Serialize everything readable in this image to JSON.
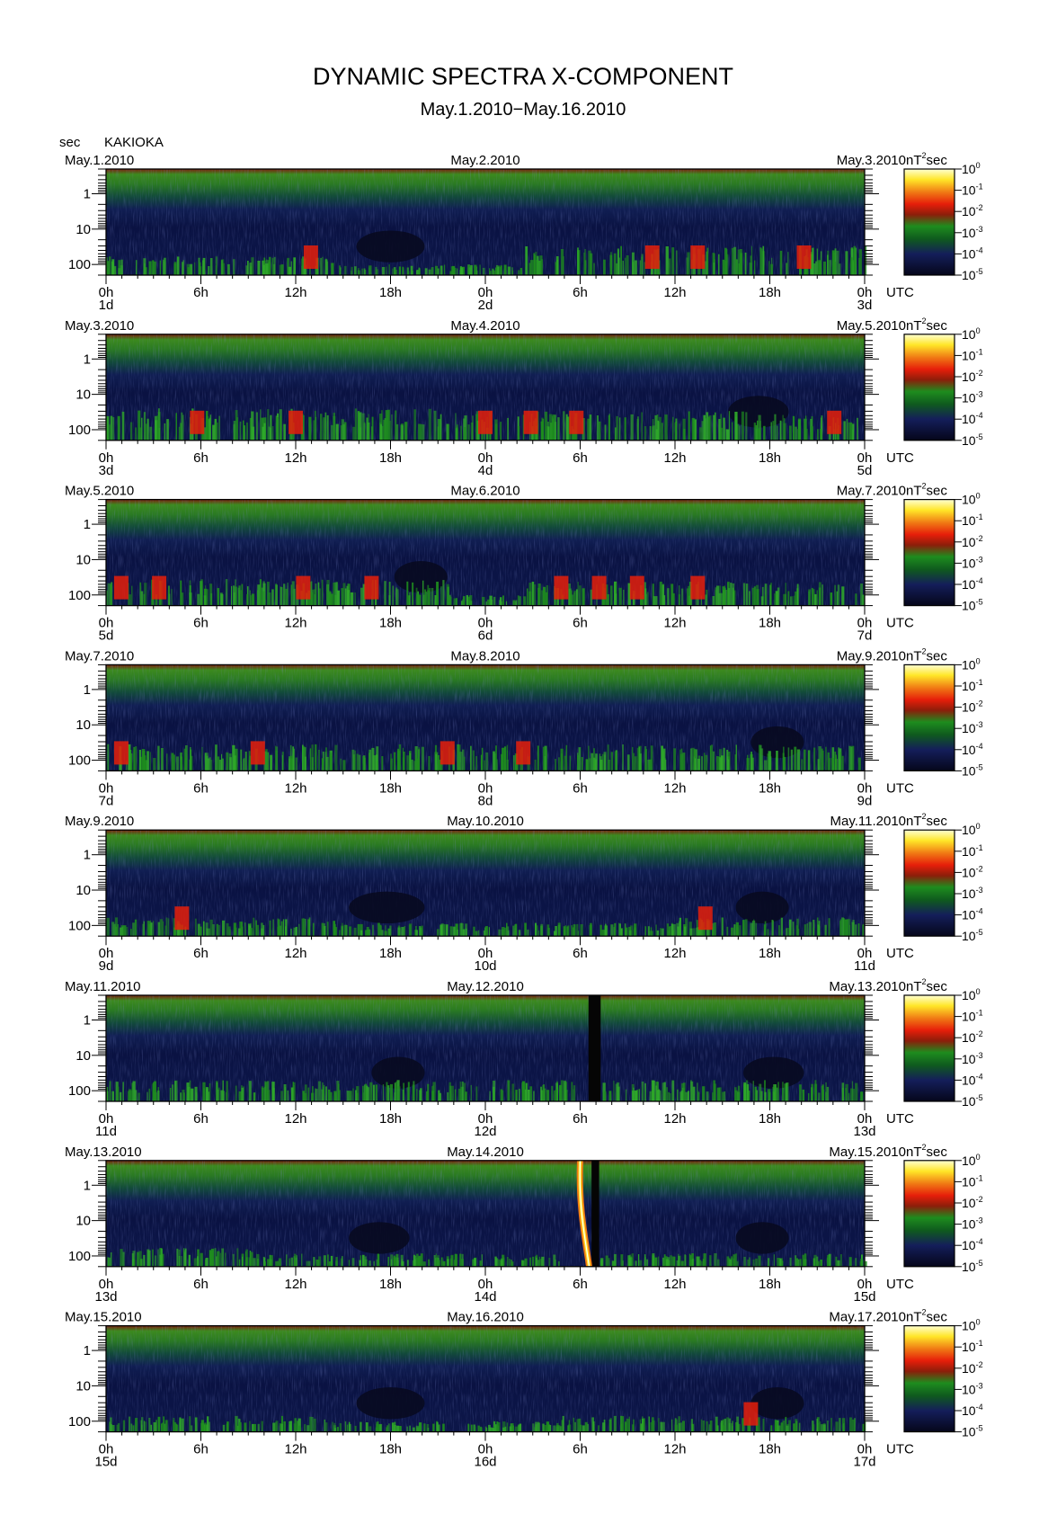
{
  "title": "DYNAMIC SPECTRA X-COMPONENT",
  "subtitle": "May.1.2010−May.16.2010",
  "station": "KAKIOKA",
  "y_unit": "sec",
  "colorbar_unit": "nT",
  "colorbar_unit_exp": "2",
  "colorbar_unit_suffix": "sec",
  "time_unit": "UTC",
  "colors": {
    "bg": "#ffffff",
    "dark_band": "#080a20",
    "navy": "#141e5a",
    "green": "#1e8c1e",
    "red": "#e61e0a",
    "orange": "#f07814",
    "yellow": "#ffe628"
  },
  "chart_data": {
    "type": "heatmap",
    "y_axis": {
      "label": "sec",
      "scale": "log",
      "tick_labels": [
        "1",
        "10",
        "100"
      ]
    },
    "x_tick_labels": [
      "0h",
      "6h",
      "12h",
      "18h",
      "0h",
      "6h",
      "12h",
      "18h",
      "0h"
    ],
    "colorbar": {
      "unit": "nT²sec",
      "scale": "log",
      "tick_base": "10",
      "tick_exponents": [
        "0",
        "-1",
        "-2",
        "-3",
        "-4",
        "-5"
      ],
      "colors": [
        "#ffffb4",
        "#ffe628",
        "#f07814",
        "#e61e0a",
        "#8c1e0a",
        "#1e8c1e",
        "#0f5a1e",
        "#141e5a",
        "#080a20"
      ]
    },
    "panels": [
      {
        "start_date": "May.1.2010",
        "mid_date": "May.2.2010",
        "end_date": "May.3.2010",
        "day_labels": [
          "1d",
          "2d",
          "3d"
        ],
        "low_freq_activity": [
          {
            "x_range": [
              0.0,
              0.3
            ],
            "level": 0.35,
            "red_spots": [
              0.27
            ]
          },
          {
            "x_range": [
              0.3,
              0.55
            ],
            "level": 0.2,
            "red_spots": []
          },
          {
            "x_range": [
              0.55,
              1.0
            ],
            "level": 0.55,
            "red_spots": [
              0.72,
              0.78,
              0.92
            ]
          }
        ],
        "quiet_regions": [
          [
            0.33,
            0.42
          ]
        ],
        "data_gaps": [],
        "spikes": []
      },
      {
        "start_date": "May.3.2010",
        "mid_date": "May.4.2010",
        "end_date": "May.5.2010",
        "day_labels": [
          "3d",
          "4d",
          "5d"
        ],
        "low_freq_activity": [
          {
            "x_range": [
              0.0,
              0.45
            ],
            "level": 0.6,
            "red_spots": [
              0.12,
              0.25
            ]
          },
          {
            "x_range": [
              0.45,
              0.85
            ],
            "level": 0.55,
            "red_spots": [
              0.5,
              0.56,
              0.62
            ]
          },
          {
            "x_range": [
              0.85,
              1.0
            ],
            "level": 0.5,
            "red_spots": [
              0.96
            ]
          }
        ],
        "quiet_regions": [
          [
            0.82,
            0.9
          ]
        ],
        "data_gaps": [],
        "spikes": []
      },
      {
        "start_date": "May.5.2010",
        "mid_date": "May.6.2010",
        "end_date": "May.7.2010",
        "day_labels": [
          "5d",
          "6d",
          "7d"
        ],
        "low_freq_activity": [
          {
            "x_range": [
              0.0,
              0.45
            ],
            "level": 0.5,
            "red_spots": [
              0.02,
              0.07,
              0.26,
              0.35
            ]
          },
          {
            "x_range": [
              0.45,
              0.55
            ],
            "level": 0.2,
            "red_spots": []
          },
          {
            "x_range": [
              0.55,
              1.0
            ],
            "level": 0.45,
            "red_spots": [
              0.6,
              0.65,
              0.7,
              0.78
            ]
          }
        ],
        "quiet_regions": [
          [
            0.38,
            0.45
          ]
        ],
        "data_gaps": [],
        "spikes": []
      },
      {
        "start_date": "May.7.2010",
        "mid_date": "May.8.2010",
        "end_date": "May.9.2010",
        "day_labels": [
          "7d",
          "8d",
          "9d"
        ],
        "low_freq_activity": [
          {
            "x_range": [
              0.0,
              1.0
            ],
            "level": 0.5,
            "red_spots": [
              0.02,
              0.2,
              0.45,
              0.55
            ]
          }
        ],
        "quiet_regions": [
          [
            0.85,
            0.92
          ]
        ],
        "data_gaps": [],
        "spikes": []
      },
      {
        "start_date": "May.9.2010",
        "mid_date": "May.10.2010",
        "end_date": "May.11.2010",
        "day_labels": [
          "9d",
          "10d",
          "11d"
        ],
        "low_freq_activity": [
          {
            "x_range": [
              0.0,
              0.3
            ],
            "level": 0.35,
            "red_spots": [
              0.1
            ]
          },
          {
            "x_range": [
              0.3,
              0.75
            ],
            "level": 0.25,
            "red_spots": []
          },
          {
            "x_range": [
              0.75,
              1.0
            ],
            "level": 0.35,
            "red_spots": [
              0.79
            ]
          }
        ],
        "quiet_regions": [
          [
            0.32,
            0.42
          ],
          [
            0.83,
            0.9
          ]
        ],
        "data_gaps": [],
        "spikes": []
      },
      {
        "start_date": "May.11.2010",
        "mid_date": "May.12.2010",
        "end_date": "May.13.2010",
        "day_labels": [
          "11d",
          "12d",
          "13d"
        ],
        "low_freq_activity": [
          {
            "x_range": [
              0.0,
              0.62
            ],
            "level": 0.4,
            "red_spots": []
          },
          {
            "x_range": [
              0.65,
              1.0
            ],
            "level": 0.4,
            "red_spots": []
          }
        ],
        "quiet_regions": [
          [
            0.35,
            0.42
          ],
          [
            0.84,
            0.92
          ]
        ],
        "data_gaps": [
          [
            0.636,
            0.652
          ]
        ],
        "spikes": []
      },
      {
        "start_date": "May.13.2010",
        "mid_date": "May.14.2010",
        "end_date": "May.15.2010",
        "day_labels": [
          "13d",
          "14d",
          "15d"
        ],
        "low_freq_activity": [
          {
            "x_range": [
              0.0,
              0.2
            ],
            "level": 0.35,
            "red_spots": []
          },
          {
            "x_range": [
              0.2,
              0.6
            ],
            "level": 0.25,
            "red_spots": []
          },
          {
            "x_range": [
              0.65,
              1.0
            ],
            "level": 0.25,
            "red_spots": []
          }
        ],
        "quiet_regions": [
          [
            0.32,
            0.4
          ],
          [
            0.83,
            0.9
          ]
        ],
        "data_gaps": [
          [
            0.64,
            0.65
          ]
        ],
        "spikes": [
          0.625
        ]
      },
      {
        "start_date": "May.15.2010",
        "mid_date": "May.16.2010",
        "end_date": "May.17.2010",
        "day_labels": [
          "15d",
          "16d",
          "17d"
        ],
        "low_freq_activity": [
          {
            "x_range": [
              0.0,
              0.3
            ],
            "level": 0.3,
            "red_spots": []
          },
          {
            "x_range": [
              0.3,
              0.6
            ],
            "level": 0.2,
            "red_spots": []
          },
          {
            "x_range": [
              0.6,
              1.0
            ],
            "level": 0.3,
            "red_spots": [
              0.85
            ]
          }
        ],
        "quiet_regions": [
          [
            0.33,
            0.42
          ],
          [
            0.85,
            0.92
          ]
        ],
        "data_gaps": [],
        "spikes": []
      }
    ]
  }
}
